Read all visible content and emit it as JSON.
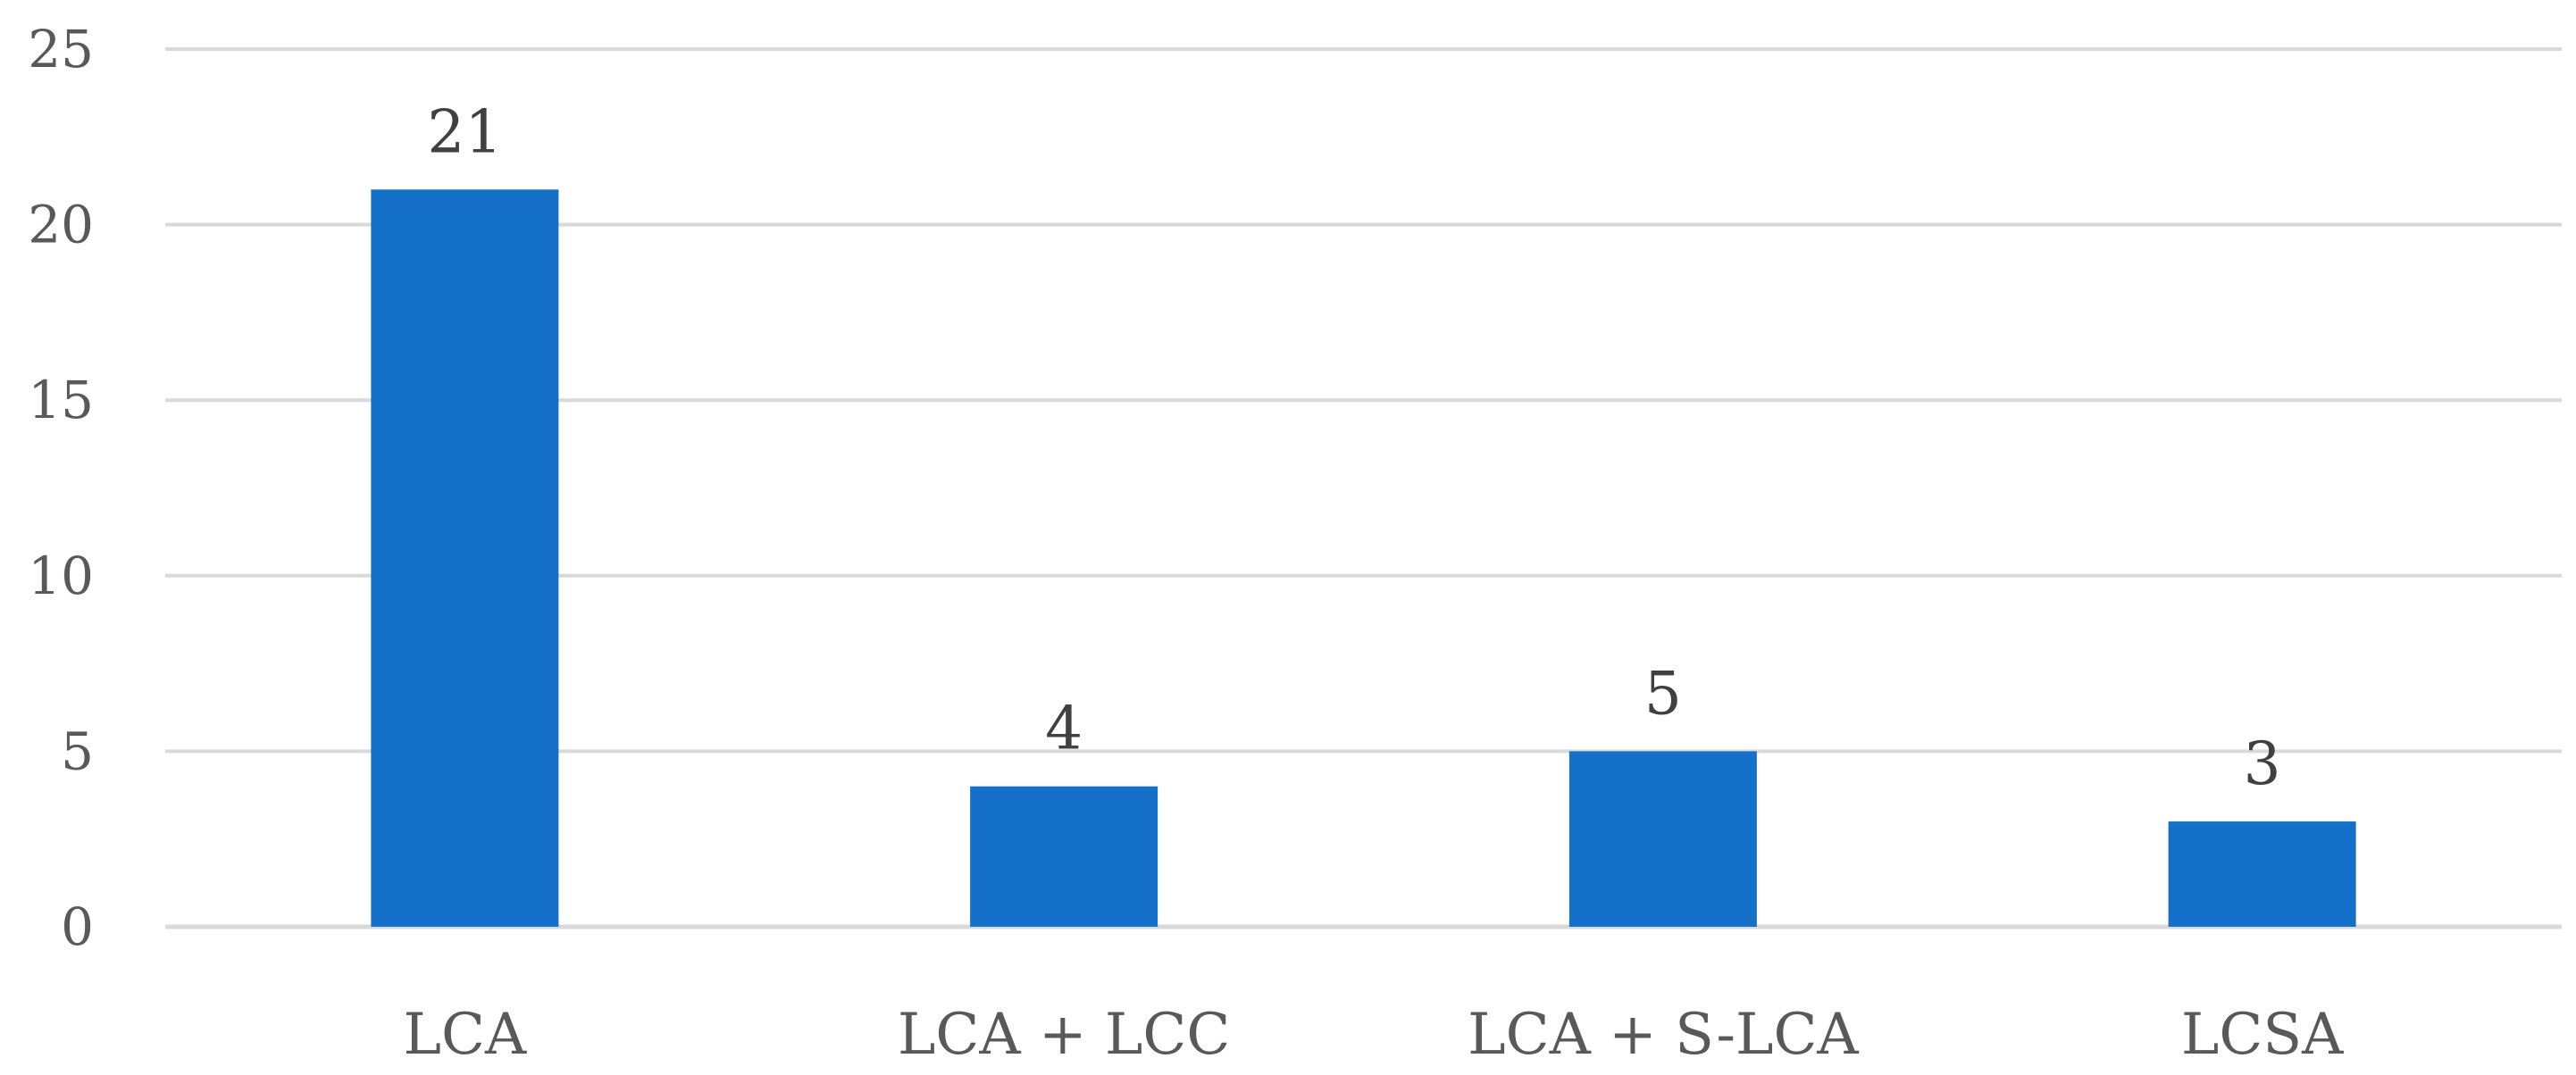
{
  "chart_data": {
    "type": "bar",
    "categories": [
      "LCA",
      "LCA + LCC",
      "LCA + S-LCA",
      "LCSA"
    ],
    "values": [
      21,
      4,
      5,
      3
    ],
    "data_labels": [
      "21",
      "4",
      "5",
      "3"
    ],
    "title": "",
    "xlabel": "",
    "ylabel": "",
    "ylim": [
      0,
      25
    ],
    "yticks": [
      0,
      5,
      10,
      15,
      20,
      25
    ],
    "ytick_labels": [
      "0",
      "5",
      "10",
      "15",
      "20",
      "25"
    ],
    "grid": true,
    "legend": "none",
    "colors": {
      "bar": "#1570c9"
    }
  }
}
